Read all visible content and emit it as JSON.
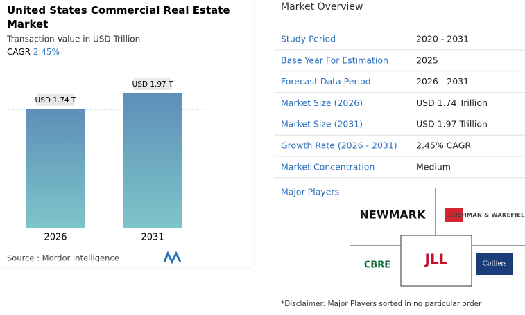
{
  "chart_data": {
    "type": "bar",
    "title": "United States Commercial Real Estate Market",
    "subtitle": "Transaction Value in USD Trillion",
    "cagr_label": "CAGR",
    "cagr_value": "2.45%",
    "categories": [
      "2026",
      "2031"
    ],
    "values": [
      1.74,
      1.97
    ],
    "value_labels": [
      "USD 1.74 T",
      "USD 1.97 T"
    ],
    "source": "Source : Mordor Intelligence"
  },
  "overview": {
    "title": "Market Overview",
    "rows": [
      [
        "Study Period",
        "2020 - 2031"
      ],
      [
        "Base Year For Estimation",
        "2025"
      ],
      [
        "Forecast Data Period",
        "2026 - 2031"
      ],
      [
        "Market Size (2026)",
        "USD 1.74 Trillion"
      ],
      [
        "Market Size (2031)",
        "USD 1.97 Trillion"
      ],
      [
        "Growth Rate (2026 - 2031)",
        "2.45% CAGR"
      ],
      [
        "Market Concentration",
        "Medium"
      ]
    ],
    "players_label": "Major Players",
    "players": [
      "NEWMARK",
      "CUSHMAN & WAKEFIELD",
      "CBRE",
      "JLL",
      "Colliers"
    ],
    "disclaimer": "*Disclaimer: Major Players sorted in no particular order"
  }
}
